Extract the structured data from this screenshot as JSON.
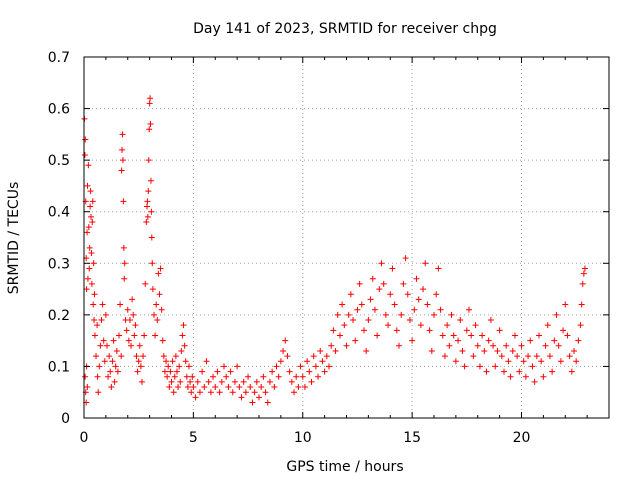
{
  "chart_data": {
    "type": "scatter",
    "title": "Day 141 of 2023, SRMTID for receiver chpg",
    "xlabel": "GPS time / hours",
    "ylabel": "SRMTID / TECUs",
    "xlim": [
      0,
      24
    ],
    "ylim": [
      0,
      0.7
    ],
    "xticks": [
      0,
      5,
      10,
      15,
      20
    ],
    "xtick_labels": [
      "0",
      "5",
      "10",
      "15",
      "20"
    ],
    "yticks": [
      0,
      0.1,
      0.2,
      0.3,
      0.4,
      0.5,
      0.6,
      0.7
    ],
    "ytick_labels": [
      "0",
      "0.1",
      "0.2",
      "0.3",
      "0.4",
      "0.5",
      "0.6",
      "0.7"
    ],
    "grid": true,
    "marker": "+",
    "series": [
      {
        "name": "SRMTID",
        "color": "#ff0000",
        "points": [
          [
            0.02,
            0.58
          ],
          [
            0.04,
            0.51
          ],
          [
            0.06,
            0.54
          ],
          [
            0.08,
            0.42
          ],
          [
            0.1,
            0.31
          ],
          [
            0.12,
            0.25
          ],
          [
            0.14,
            0.36
          ],
          [
            0.16,
            0.45
          ],
          [
            0.18,
            0.27
          ],
          [
            0.2,
            0.49
          ],
          [
            0.22,
            0.37
          ],
          [
            0.24,
            0.29
          ],
          [
            0.26,
            0.33
          ],
          [
            0.28,
            0.41
          ],
          [
            0.3,
            0.44
          ],
          [
            0.32,
            0.39
          ],
          [
            0.34,
            0.32
          ],
          [
            0.36,
            0.26
          ],
          [
            0.38,
            0.38
          ],
          [
            0.4,
            0.42
          ],
          [
            0.42,
            0.22
          ],
          [
            0.44,
            0.3
          ],
          [
            0.46,
            0.19
          ],
          [
            0.48,
            0.24
          ],
          [
            0.5,
            0.16
          ],
          [
            0.05,
            0.08
          ],
          [
            0.08,
            0.05
          ],
          [
            0.1,
            0.03
          ],
          [
            0.12,
            0.1
          ],
          [
            0.15,
            0.06
          ],
          [
            0.55,
            0.12
          ],
          [
            0.6,
            0.18
          ],
          [
            0.62,
            0.08
          ],
          [
            0.65,
            0.05
          ],
          [
            0.7,
            0.1
          ],
          [
            0.75,
            0.14
          ],
          [
            0.8,
            0.19
          ],
          [
            0.85,
            0.22
          ],
          [
            0.9,
            0.15
          ],
          [
            0.95,
            0.11
          ],
          [
            1.0,
            0.2
          ],
          [
            1.05,
            0.14
          ],
          [
            1.1,
            0.08
          ],
          [
            1.15,
            0.12
          ],
          [
            1.2,
            0.09
          ],
          [
            1.25,
            0.06
          ],
          [
            1.3,
            0.11
          ],
          [
            1.35,
            0.15
          ],
          [
            1.4,
            0.07
          ],
          [
            1.45,
            0.1
          ],
          [
            1.5,
            0.13
          ],
          [
            1.55,
            0.09
          ],
          [
            1.6,
            0.16
          ],
          [
            1.65,
            0.22
          ],
          [
            1.7,
            0.12
          ],
          [
            1.72,
            0.48
          ],
          [
            1.74,
            0.52
          ],
          [
            1.76,
            0.55
          ],
          [
            1.78,
            0.5
          ],
          [
            1.8,
            0.42
          ],
          [
            1.82,
            0.33
          ],
          [
            1.84,
            0.27
          ],
          [
            1.86,
            0.3
          ],
          [
            1.9,
            0.19
          ],
          [
            1.95,
            0.17
          ],
          [
            2.0,
            0.21
          ],
          [
            2.05,
            0.15
          ],
          [
            2.1,
            0.19
          ],
          [
            2.15,
            0.14
          ],
          [
            2.2,
            0.23
          ],
          [
            2.25,
            0.2
          ],
          [
            2.3,
            0.16
          ],
          [
            2.35,
            0.18
          ],
          [
            2.4,
            0.12
          ],
          [
            2.45,
            0.09
          ],
          [
            2.5,
            0.11
          ],
          [
            2.55,
            0.14
          ],
          [
            2.6,
            0.1
          ],
          [
            2.65,
            0.07
          ],
          [
            2.7,
            0.12
          ],
          [
            2.75,
            0.16
          ],
          [
            2.8,
            0.26
          ],
          [
            2.85,
            0.38
          ],
          [
            2.88,
            0.41
          ],
          [
            2.9,
            0.42
          ],
          [
            2.92,
            0.39
          ],
          [
            2.94,
            0.44
          ],
          [
            2.96,
            0.5
          ],
          [
            2.98,
            0.56
          ],
          [
            3.0,
            0.61
          ],
          [
            3.02,
            0.62
          ],
          [
            3.04,
            0.57
          ],
          [
            3.06,
            0.46
          ],
          [
            3.08,
            0.4
          ],
          [
            3.1,
            0.35
          ],
          [
            3.12,
            0.3
          ],
          [
            3.15,
            0.25
          ],
          [
            3.2,
            0.2
          ],
          [
            3.25,
            0.16
          ],
          [
            3.3,
            0.22
          ],
          [
            3.35,
            0.19
          ],
          [
            3.4,
            0.28
          ],
          [
            3.45,
            0.24
          ],
          [
            3.5,
            0.29
          ],
          [
            3.55,
            0.21
          ],
          [
            3.6,
            0.15
          ],
          [
            3.65,
            0.12
          ],
          [
            3.7,
            0.09
          ],
          [
            3.75,
            0.11
          ],
          [
            3.8,
            0.08
          ],
          [
            3.85,
            0.1
          ],
          [
            3.9,
            0.06
          ],
          [
            3.95,
            0.09
          ],
          [
            4.0,
            0.07
          ],
          [
            4.05,
            0.11
          ],
          [
            4.1,
            0.05
          ],
          [
            4.15,
            0.08
          ],
          [
            4.2,
            0.12
          ],
          [
            4.25,
            0.09
          ],
          [
            4.3,
            0.06
          ],
          [
            4.35,
            0.1
          ],
          [
            4.4,
            0.07
          ],
          [
            4.45,
            0.13
          ],
          [
            4.5,
            0.16
          ],
          [
            4.55,
            0.18
          ],
          [
            4.6,
            0.14
          ],
          [
            4.65,
            0.11
          ],
          [
            4.7,
            0.08
          ],
          [
            4.75,
            0.06
          ],
          [
            4.8,
            0.1
          ],
          [
            4.85,
            0.07
          ],
          [
            4.9,
            0.05
          ],
          [
            4.95,
            0.08
          ],
          [
            5.0,
            0.06
          ],
          [
            5.1,
            0.04
          ],
          [
            5.2,
            0.07
          ],
          [
            5.3,
            0.05
          ],
          [
            5.4,
            0.09
          ],
          [
            5.5,
            0.06
          ],
          [
            5.6,
            0.11
          ],
          [
            5.7,
            0.07
          ],
          [
            5.8,
            0.05
          ],
          [
            5.9,
            0.08
          ],
          [
            6.0,
            0.06
          ],
          [
            6.1,
            0.09
          ],
          [
            6.2,
            0.05
          ],
          [
            6.3,
            0.07
          ],
          [
            6.4,
            0.1
          ],
          [
            6.5,
            0.08
          ],
          [
            6.6,
            0.06
          ],
          [
            6.7,
            0.09
          ],
          [
            6.8,
            0.05
          ],
          [
            6.9,
            0.07
          ],
          [
            7.0,
            0.1
          ],
          [
            7.1,
            0.06
          ],
          [
            7.2,
            0.04
          ],
          [
            7.3,
            0.07
          ],
          [
            7.4,
            0.05
          ],
          [
            7.5,
            0.08
          ],
          [
            7.6,
            0.06
          ],
          [
            7.7,
            0.03
          ],
          [
            7.8,
            0.05
          ],
          [
            7.9,
            0.07
          ],
          [
            8.0,
            0.04
          ],
          [
            8.1,
            0.06
          ],
          [
            8.2,
            0.08
          ],
          [
            8.3,
            0.05
          ],
          [
            8.4,
            0.03
          ],
          [
            8.5,
            0.07
          ],
          [
            8.6,
            0.09
          ],
          [
            8.7,
            0.06
          ],
          [
            8.8,
            0.1
          ],
          [
            8.9,
            0.08
          ],
          [
            9.0,
            0.11
          ],
          [
            9.1,
            0.13
          ],
          [
            9.2,
            0.15
          ],
          [
            9.3,
            0.12
          ],
          [
            9.4,
            0.09
          ],
          [
            9.5,
            0.07
          ],
          [
            9.6,
            0.05
          ],
          [
            9.7,
            0.08
          ],
          [
            9.8,
            0.06
          ],
          [
            9.9,
            0.1
          ],
          [
            10.0,
            0.08
          ],
          [
            10.1,
            0.06
          ],
          [
            10.2,
            0.11
          ],
          [
            10.3,
            0.09
          ],
          [
            10.4,
            0.07
          ],
          [
            10.5,
            0.12
          ],
          [
            10.6,
            0.1
          ],
          [
            10.7,
            0.08
          ],
          [
            10.8,
            0.13
          ],
          [
            10.9,
            0.11
          ],
          [
            11.0,
            0.09
          ],
          [
            11.1,
            0.12
          ],
          [
            11.2,
            0.1
          ],
          [
            11.3,
            0.14
          ],
          [
            11.4,
            0.17
          ],
          [
            11.5,
            0.13
          ],
          [
            11.6,
            0.2
          ],
          [
            11.7,
            0.16
          ],
          [
            11.8,
            0.22
          ],
          [
            11.9,
            0.18
          ],
          [
            12.0,
            0.14
          ],
          [
            12.1,
            0.2
          ],
          [
            12.2,
            0.24
          ],
          [
            12.3,
            0.19
          ],
          [
            12.4,
            0.15
          ],
          [
            12.5,
            0.21
          ],
          [
            12.6,
            0.26
          ],
          [
            12.7,
            0.22
          ],
          [
            12.8,
            0.17
          ],
          [
            12.9,
            0.13
          ],
          [
            13.0,
            0.19
          ],
          [
            13.1,
            0.23
          ],
          [
            13.2,
            0.27
          ],
          [
            13.3,
            0.21
          ],
          [
            13.4,
            0.16
          ],
          [
            13.5,
            0.25
          ],
          [
            13.6,
            0.3
          ],
          [
            13.7,
            0.26
          ],
          [
            13.8,
            0.2
          ],
          [
            13.9,
            0.18
          ],
          [
            14.0,
            0.24
          ],
          [
            14.1,
            0.29
          ],
          [
            14.2,
            0.22
          ],
          [
            14.3,
            0.17
          ],
          [
            14.4,
            0.14
          ],
          [
            14.5,
            0.2
          ],
          [
            14.6,
            0.26
          ],
          [
            14.7,
            0.31
          ],
          [
            14.8,
            0.24
          ],
          [
            14.9,
            0.19
          ],
          [
            15.0,
            0.15
          ],
          [
            15.1,
            0.21
          ],
          [
            15.2,
            0.27
          ],
          [
            15.3,
            0.23
          ],
          [
            15.4,
            0.18
          ],
          [
            15.5,
            0.25
          ],
          [
            15.6,
            0.3
          ],
          [
            15.7,
            0.22
          ],
          [
            15.8,
            0.17
          ],
          [
            15.9,
            0.13
          ],
          [
            16.0,
            0.2
          ],
          [
            16.1,
            0.24
          ],
          [
            16.2,
            0.29
          ],
          [
            16.3,
            0.21
          ],
          [
            16.4,
            0.16
          ],
          [
            16.5,
            0.12
          ],
          [
            16.6,
            0.18
          ],
          [
            16.7,
            0.14
          ],
          [
            16.8,
            0.2
          ],
          [
            16.9,
            0.16
          ],
          [
            17.0,
            0.11
          ],
          [
            17.1,
            0.15
          ],
          [
            17.2,
            0.19
          ],
          [
            17.3,
            0.13
          ],
          [
            17.4,
            0.1
          ],
          [
            17.5,
            0.17
          ],
          [
            17.6,
            0.21
          ],
          [
            17.7,
            0.16
          ],
          [
            17.8,
            0.12
          ],
          [
            17.9,
            0.18
          ],
          [
            18.0,
            0.14
          ],
          [
            18.1,
            0.1
          ],
          [
            18.2,
            0.16
          ],
          [
            18.3,
            0.13
          ],
          [
            18.4,
            0.09
          ],
          [
            18.5,
            0.15
          ],
          [
            18.6,
            0.19
          ],
          [
            18.7,
            0.14
          ],
          [
            18.8,
            0.1
          ],
          [
            18.9,
            0.13
          ],
          [
            19.0,
            0.17
          ],
          [
            19.1,
            0.12
          ],
          [
            19.2,
            0.09
          ],
          [
            19.3,
            0.14
          ],
          [
            19.4,
            0.11
          ],
          [
            19.5,
            0.08
          ],
          [
            19.6,
            0.13
          ],
          [
            19.7,
            0.16
          ],
          [
            19.8,
            0.12
          ],
          [
            19.9,
            0.09
          ],
          [
            20.0,
            0.14
          ],
          [
            20.1,
            0.11
          ],
          [
            20.2,
            0.08
          ],
          [
            20.3,
            0.12
          ],
          [
            20.4,
            0.15
          ],
          [
            20.5,
            0.1
          ],
          [
            20.6,
            0.07
          ],
          [
            20.7,
            0.12
          ],
          [
            20.8,
            0.16
          ],
          [
            20.9,
            0.11
          ],
          [
            21.0,
            0.08
          ],
          [
            21.1,
            0.14
          ],
          [
            21.2,
            0.18
          ],
          [
            21.3,
            0.12
          ],
          [
            21.4,
            0.09
          ],
          [
            21.5,
            0.15
          ],
          [
            21.6,
            0.2
          ],
          [
            21.7,
            0.14
          ],
          [
            21.8,
            0.11
          ],
          [
            21.9,
            0.17
          ],
          [
            22.0,
            0.22
          ],
          [
            22.1,
            0.16
          ],
          [
            22.2,
            0.12
          ],
          [
            22.3,
            0.09
          ],
          [
            22.4,
            0.13
          ],
          [
            22.5,
            0.11
          ],
          [
            22.6,
            0.15
          ],
          [
            22.7,
            0.18
          ],
          [
            22.75,
            0.22
          ],
          [
            22.8,
            0.26
          ],
          [
            22.85,
            0.28
          ],
          [
            22.9,
            0.29
          ]
        ]
      }
    ]
  }
}
